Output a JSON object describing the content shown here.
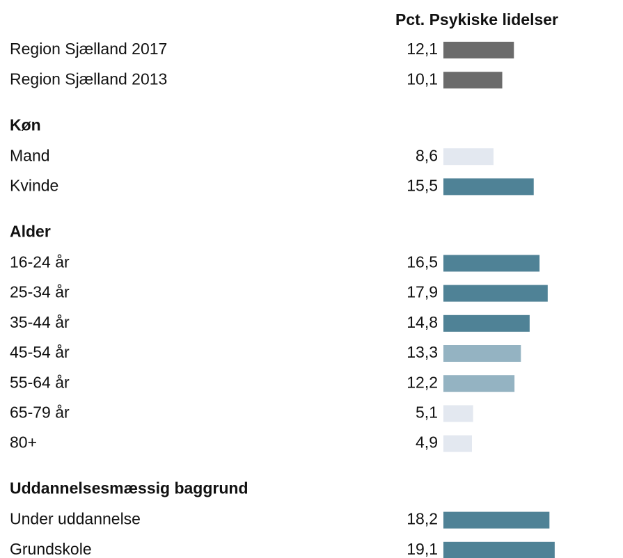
{
  "chart_data": {
    "type": "bar",
    "title": "Pct. Psykiske lidelser",
    "sections": [
      {
        "categories": [
          "Region Sjælland 2017",
          "Region Sjælland 2013"
        ],
        "values": [
          12.1,
          10.1
        ],
        "value_labels": [
          "12,1",
          "10,1"
        ],
        "colors": [
          "#6b6b6b",
          "#6b6b6b"
        ]
      },
      {
        "title": "Køn",
        "categories": [
          "Mand",
          "Kvinde"
        ],
        "values": [
          8.6,
          15.5
        ],
        "value_labels": [
          "8,6",
          "15,5"
        ],
        "colors": [
          "#e3e8f0",
          "#4f8296"
        ]
      },
      {
        "title": "Alder",
        "categories": [
          "16-24 år",
          "25-34 år",
          "35-44 år",
          "45-54 år",
          "55-64 år",
          "65-79 år",
          "80+"
        ],
        "values": [
          16.5,
          17.9,
          14.8,
          13.3,
          12.2,
          5.1,
          4.9
        ],
        "value_labels": [
          "16,5",
          "17,9",
          "14,8",
          "13,3",
          "12,2",
          "5,1",
          "4,9"
        ],
        "colors": [
          "#4f8296",
          "#4f8296",
          "#4f8296",
          "#94b3c2",
          "#94b3c2",
          "#e3e8f0",
          "#e3e8f0"
        ]
      },
      {
        "title": "Uddannelsesmæssig baggrund",
        "categories": [
          "Under uddannelse",
          "Grundskole"
        ],
        "values": [
          18.2,
          19.1
        ],
        "value_labels": [
          "18,2",
          "19,1"
        ],
        "colors": [
          "#4f8296",
          "#4f8296"
        ]
      }
    ]
  }
}
